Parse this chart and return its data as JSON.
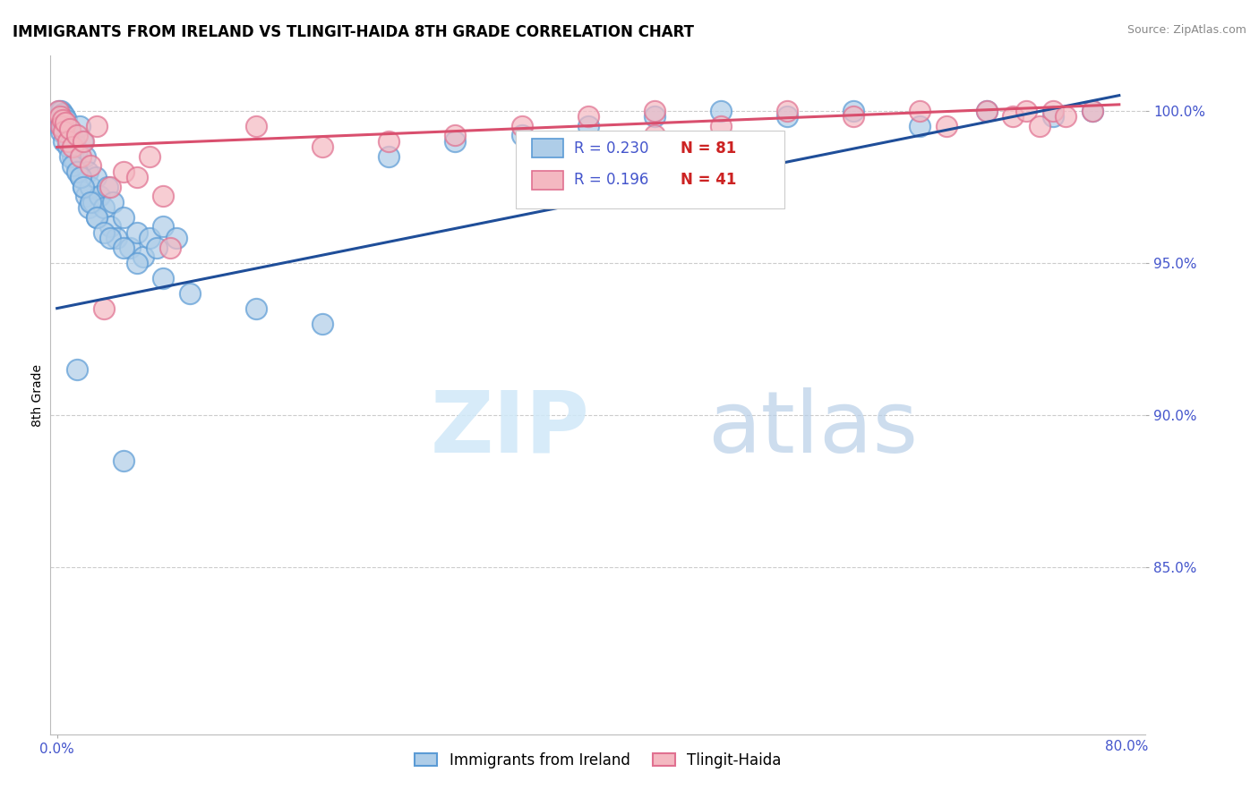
{
  "title": "IMMIGRANTS FROM IRELAND VS TLINGIT-HAIDA 8TH GRADE CORRELATION CHART",
  "source": "Source: ZipAtlas.com",
  "ylabel": "8th Grade",
  "y_ticks": [
    85.0,
    90.0,
    95.0,
    100.0
  ],
  "x_range": [
    0.0,
    80.0
  ],
  "y_range": [
    80.0,
    101.5
  ],
  "legend_blue_r": "R = 0.230",
  "legend_blue_n": "N = 81",
  "legend_pink_r": "R = 0.196",
  "legend_pink_n": "N = 41",
  "blue_dot_face": "#aecde8",
  "blue_dot_edge": "#5b9bd5",
  "pink_dot_face": "#f4b8c1",
  "pink_dot_edge": "#e07090",
  "blue_line_color": "#1f4e99",
  "pink_line_color": "#d94f6e",
  "grid_color": "#cccccc",
  "tick_color": "#4455cc",
  "watermark_zip_color": "#d0e8f8",
  "watermark_atlas_color": "#b8cfe8",
  "blue_x": [
    0.1,
    0.15,
    0.2,
    0.25,
    0.3,
    0.35,
    0.4,
    0.45,
    0.5,
    0.55,
    0.6,
    0.65,
    0.7,
    0.75,
    0.8,
    0.9,
    1.0,
    1.1,
    1.2,
    1.3,
    1.4,
    1.5,
    1.6,
    1.7,
    1.8,
    1.9,
    2.0,
    2.1,
    2.2,
    2.3,
    2.4,
    2.5,
    2.7,
    2.9,
    3.0,
    3.2,
    3.5,
    3.8,
    4.0,
    4.2,
    4.5,
    5.0,
    5.5,
    6.0,
    6.5,
    7.0,
    7.5,
    8.0,
    9.0,
    1.5,
    5.0,
    0.3,
    0.5,
    0.8,
    1.0,
    1.2,
    1.5,
    1.8,
    2.0,
    2.5,
    3.0,
    3.5,
    4.0,
    5.0,
    6.0,
    8.0,
    10.0,
    15.0,
    20.0,
    25.0,
    30.0,
    35.0,
    40.0,
    45.0,
    50.0,
    55.0,
    60.0,
    65.0,
    70.0,
    75.0,
    78.0
  ],
  "blue_y": [
    99.8,
    100.0,
    99.5,
    99.8,
    100.0,
    99.6,
    99.9,
    99.7,
    99.5,
    99.8,
    99.6,
    99.3,
    99.7,
    99.5,
    99.2,
    99.0,
    98.8,
    99.2,
    98.5,
    99.0,
    98.3,
    98.7,
    98.0,
    99.5,
    97.8,
    99.0,
    97.5,
    98.5,
    97.2,
    98.0,
    96.8,
    97.5,
    97.0,
    97.8,
    96.5,
    97.2,
    96.8,
    97.5,
    96.2,
    97.0,
    95.8,
    96.5,
    95.5,
    96.0,
    95.2,
    95.8,
    95.5,
    96.2,
    95.8,
    91.5,
    88.5,
    99.3,
    99.0,
    98.8,
    98.5,
    98.2,
    98.0,
    97.8,
    97.5,
    97.0,
    96.5,
    96.0,
    95.8,
    95.5,
    95.0,
    94.5,
    94.0,
    93.5,
    93.0,
    98.5,
    99.0,
    99.2,
    99.5,
    99.8,
    100.0,
    99.8,
    100.0,
    99.5,
    100.0,
    99.8,
    100.0
  ],
  "pink_x": [
    0.1,
    0.2,
    0.3,
    0.4,
    0.5,
    0.6,
    0.8,
    1.0,
    1.2,
    1.5,
    1.8,
    2.0,
    2.5,
    3.0,
    4.0,
    5.0,
    6.0,
    7.0,
    8.0,
    3.5,
    8.5,
    15.0,
    20.0,
    25.0,
    30.0,
    35.0,
    40.0,
    45.0,
    50.0,
    55.0,
    60.0,
    65.0,
    67.0,
    70.0,
    72.0,
    73.0,
    74.0,
    75.0,
    76.0,
    78.0,
    45.0
  ],
  "pink_y": [
    100.0,
    99.8,
    99.5,
    99.7,
    99.3,
    99.6,
    99.0,
    99.4,
    98.8,
    99.2,
    98.5,
    99.0,
    98.2,
    99.5,
    97.5,
    98.0,
    97.8,
    98.5,
    97.2,
    93.5,
    95.5,
    99.5,
    98.8,
    99.0,
    99.2,
    99.5,
    99.8,
    100.0,
    99.5,
    100.0,
    99.8,
    100.0,
    99.5,
    100.0,
    99.8,
    100.0,
    99.5,
    100.0,
    99.8,
    100.0,
    99.2
  ],
  "blue_trend_x": [
    0.0,
    80.0
  ],
  "blue_trend_y": [
    93.5,
    100.5
  ],
  "pink_trend_x": [
    0.0,
    80.0
  ],
  "pink_trend_y": [
    98.8,
    100.2
  ]
}
